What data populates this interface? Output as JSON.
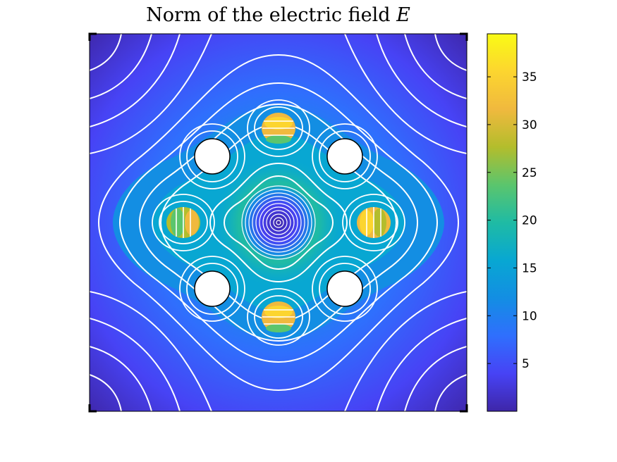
{
  "title": "Norm of the electric field",
  "title_symbol": "E",
  "colors": {
    "background": "#ffffff",
    "frame": "#000000",
    "contour": "#ffffff",
    "hole": "#ffffff",
    "colormap": [
      "#3e26a8",
      "#4743f5",
      "#2f6ffd",
      "#138ee3",
      "#08a7d2",
      "#1fbba4",
      "#5bc56d",
      "#b3bd2c",
      "#f0b93e",
      "#fcd52f",
      "#f9fb15"
    ]
  },
  "chart_data": {
    "type": "heatmap",
    "colormap": "parula",
    "colorbar": {
      "ticks": [
        5,
        10,
        15,
        20,
        25,
        30,
        35
      ],
      "range": [
        0,
        39.5
      ]
    },
    "contours": "white",
    "axes_visible": false
  }
}
